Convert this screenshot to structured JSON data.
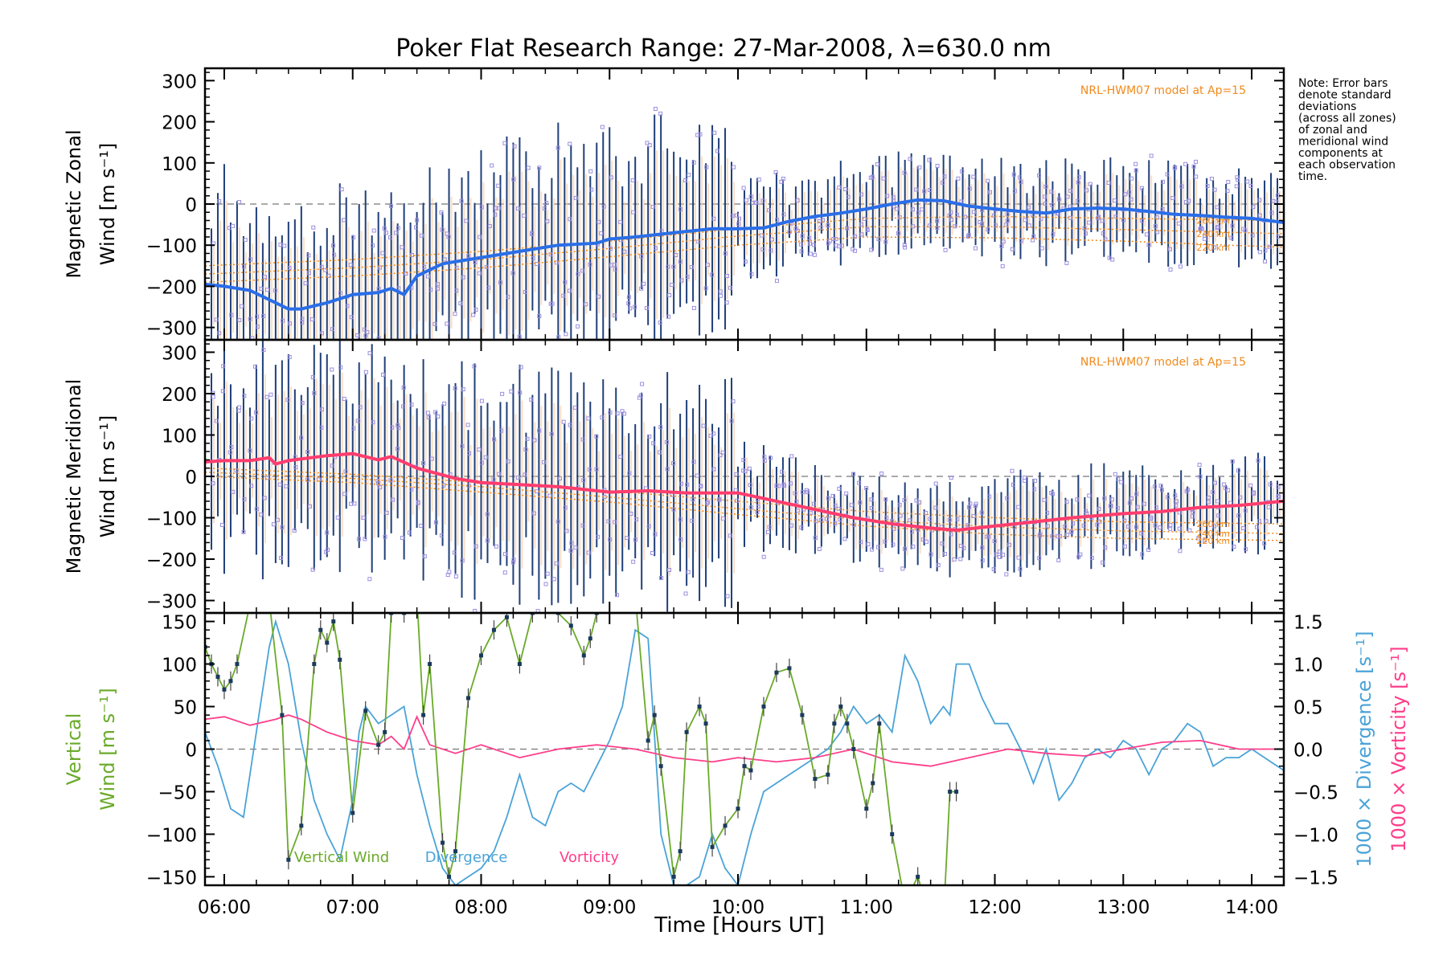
{
  "title": "Poker Flat Research Range: 27-Mar-2008, λ=630.0 nm",
  "note": "Note: Error bars denote standard deviations (across all zones) of zonal and meridional wind components at each observation time.",
  "note_lines": [
    "Note: Error bars",
    "denote standard",
    "deviations",
    "(across all zones)",
    "of zonal and",
    "meridional wind",
    "components at",
    "each observation",
    "time."
  ],
  "colors": {
    "zonal": "#2a6ee8",
    "meridional": "#ff3d6e",
    "vertical": "#6aaa2a",
    "divergence": "#4aa3d8",
    "vorticity": "#ff3d8a",
    "model": "#f08a1c",
    "zone_points": "#9a8fe0",
    "errorbar": "#1f3f78"
  },
  "xaxis": {
    "label": "Time [Hours UT]",
    "range": [
      5.85,
      14.25
    ],
    "ticks": [
      6,
      7,
      8,
      9,
      10,
      11,
      12,
      13,
      14
    ],
    "tick_labels": [
      "06:00",
      "07:00",
      "08:00",
      "09:00",
      "10:00",
      "11:00",
      "12:00",
      "13:00",
      "14:00"
    ]
  },
  "chart_data": [
    {
      "type": "line",
      "name": "zonal-panel",
      "ylabel_line1": "Magnetic Zonal",
      "ylabel_line2": "Wind [m s⁻¹]",
      "ylim": [
        -330,
        330
      ],
      "yticks": [
        -300,
        -200,
        -100,
        0,
        100,
        200,
        300
      ],
      "model_label": "NRL-HWM07 model at Ap=15",
      "model_alt_labels": [
        "260 km",
        "240 km",
        "220 km"
      ],
      "series": [
        {
          "name": "zonal-wind",
          "x": [
            5.85,
            6.0,
            6.2,
            6.4,
            6.5,
            6.6,
            6.8,
            7.0,
            7.2,
            7.3,
            7.4,
            7.5,
            7.7,
            8.0,
            8.3,
            8.6,
            8.9,
            9.0,
            9.2,
            9.5,
            9.8,
            10.0,
            10.2,
            10.4,
            10.6,
            10.8,
            11.0,
            11.2,
            11.4,
            11.6,
            11.8,
            12.0,
            12.2,
            12.4,
            12.6,
            12.8,
            13.0,
            13.2,
            13.4,
            13.6,
            13.8,
            14.0,
            14.25
          ],
          "y": [
            -195,
            -200,
            -210,
            -240,
            -255,
            -255,
            -240,
            -220,
            -215,
            -205,
            -220,
            -175,
            -145,
            -130,
            -115,
            -100,
            -95,
            -85,
            -80,
            -70,
            -60,
            -60,
            -58,
            -42,
            -30,
            -22,
            -12,
            0,
            10,
            8,
            -5,
            -12,
            -18,
            -22,
            -12,
            -10,
            -12,
            -18,
            -25,
            -28,
            -32,
            -35,
            -45
          ]
        },
        {
          "name": "model-260",
          "x": [
            5.85,
            7,
            8,
            9,
            10,
            11,
            12,
            13,
            14.25
          ],
          "y": [
            -150,
            -135,
            -115,
            -90,
            -60,
            -35,
            -30,
            -35,
            -40
          ]
        },
        {
          "name": "model-240",
          "x": [
            5.85,
            7,
            8,
            9,
            10,
            11,
            12,
            13,
            14.25
          ],
          "y": [
            -170,
            -155,
            -135,
            -108,
            -78,
            -55,
            -55,
            -62,
            -72
          ]
        },
        {
          "name": "model-220",
          "x": [
            5.85,
            7,
            8,
            9,
            10,
            11,
            12,
            13,
            14.25
          ],
          "y": [
            -190,
            -175,
            -155,
            -128,
            -100,
            -80,
            -82,
            -90,
            -105
          ]
        }
      ]
    },
    {
      "type": "line",
      "name": "meridional-panel",
      "ylabel_line1": "Magnetic Meridional",
      "ylabel_line2": "Wind [m s⁻¹]",
      "ylim": [
        -330,
        330
      ],
      "yticks": [
        -300,
        -200,
        -100,
        0,
        100,
        200,
        300
      ],
      "model_label": "NRL-HWM07 model at Ap=15",
      "model_alt_labels": [
        "260 km",
        "240 km",
        "220 km"
      ],
      "series": [
        {
          "name": "meridional-wind",
          "x": [
            5.85,
            6.0,
            6.2,
            6.35,
            6.4,
            6.5,
            6.8,
            7.0,
            7.2,
            7.3,
            7.5,
            7.8,
            8.0,
            8.3,
            8.6,
            9.0,
            9.3,
            9.6,
            10.0,
            10.3,
            10.6,
            10.9,
            11.2,
            11.5,
            11.7,
            12.0,
            12.3,
            12.6,
            13.0,
            13.3,
            13.6,
            13.9,
            14.25
          ],
          "y": [
            35,
            38,
            38,
            45,
            30,
            38,
            50,
            55,
            40,
            48,
            20,
            -5,
            -15,
            -20,
            -25,
            -38,
            -35,
            -40,
            -40,
            -60,
            -80,
            -100,
            -115,
            -125,
            -130,
            -120,
            -110,
            -100,
            -90,
            -85,
            -75,
            -70,
            -60
          ]
        },
        {
          "name": "model-260",
          "x": [
            5.85,
            7,
            8,
            9,
            10,
            11,
            12,
            13,
            14.25
          ],
          "y": [
            20,
            5,
            -15,
            -35,
            -60,
            -85,
            -100,
            -110,
            -115
          ]
        },
        {
          "name": "model-240",
          "x": [
            5.85,
            7,
            8,
            9,
            10,
            11,
            12,
            13,
            14.25
          ],
          "y": [
            10,
            -5,
            -25,
            -50,
            -78,
            -105,
            -122,
            -132,
            -138
          ]
        },
        {
          "name": "model-220",
          "x": [
            5.85,
            7,
            8,
            9,
            10,
            11,
            12,
            13,
            14.25
          ],
          "y": [
            0,
            -15,
            -38,
            -62,
            -92,
            -120,
            -140,
            -150,
            -155
          ]
        }
      ]
    },
    {
      "type": "line",
      "name": "vertical-panel",
      "ylabel_line1": "Vertical",
      "ylabel_line2": "Wind [m s⁻¹]",
      "ylim": [
        -160,
        160
      ],
      "yticks": [
        -150,
        -100,
        -50,
        0,
        50,
        100,
        150
      ],
      "y2label_a": "1000 × Divergence [s⁻¹]",
      "y2label_b": "1000 × Vorticity [s⁻¹]",
      "y2lim": [
        -1.6,
        1.6
      ],
      "y2ticks": [
        -1.5,
        -1.0,
        -0.5,
        0.0,
        0.5,
        1.0,
        1.5
      ],
      "y2tick_labels": [
        "−1.5",
        "−1.0",
        "−0.5",
        "0.0",
        "0.5",
        "1.0",
        "1.5"
      ],
      "legend": [
        "Vertical Wind",
        "Divergence",
        "Vorticity"
      ],
      "series": [
        {
          "name": "Vertical Wind",
          "x": [
            5.85,
            5.9,
            5.95,
            6.0,
            6.05,
            6.1,
            6.2,
            6.35,
            6.45,
            6.5,
            6.6,
            6.7,
            6.75,
            6.8,
            6.85,
            6.9,
            7.0,
            7.1,
            7.2,
            7.25,
            7.3,
            7.4,
            7.5,
            7.55,
            7.6,
            7.7,
            7.75,
            7.8,
            7.9,
            8.0,
            8.1,
            8.2,
            8.3,
            8.4,
            8.5,
            8.6,
            8.7,
            8.8,
            8.85,
            8.9,
            9.0,
            9.1,
            9.2,
            9.3,
            9.35,
            9.4,
            9.5,
            9.55,
            9.6,
            9.7,
            9.75,
            9.8,
            9.9,
            10.0,
            10.05,
            10.1,
            10.2,
            10.3,
            10.4,
            10.5,
            10.6,
            10.7,
            10.75,
            10.8,
            10.85,
            10.9,
            11.0,
            11.05,
            11.1,
            11.2,
            11.3,
            11.4,
            11.5,
            11.6,
            11.65,
            11.7
          ],
          "y": [
            120,
            100,
            85,
            70,
            80,
            100,
            170,
            175,
            40,
            -130,
            -90,
            100,
            140,
            125,
            150,
            105,
            -75,
            45,
            5,
            20,
            160,
            160,
            180,
            40,
            100,
            -110,
            -150,
            -120,
            60,
            110,
            140,
            155,
            100,
            160,
            165,
            160,
            145,
            110,
            130,
            160,
            165,
            165,
            180,
            10,
            40,
            -20,
            -150,
            -120,
            20,
            50,
            30,
            -115,
            -90,
            -70,
            -20,
            -25,
            50,
            90,
            95,
            40,
            -35,
            -30,
            30,
            50,
            30,
            0,
            -70,
            -40,
            30,
            -100,
            -180,
            -150,
            -200,
            -200,
            -50,
            -50
          ]
        },
        {
          "name": "Divergence",
          "x": [
            5.85,
            5.95,
            6.05,
            6.15,
            6.25,
            6.35,
            6.4,
            6.5,
            6.6,
            6.7,
            6.8,
            6.9,
            7.0,
            7.05,
            7.1,
            7.2,
            7.3,
            7.4,
            7.5,
            7.6,
            7.7,
            7.8,
            7.9,
            8.0,
            8.1,
            8.2,
            8.3,
            8.4,
            8.5,
            8.6,
            8.7,
            8.8,
            8.9,
            9.0,
            9.1,
            9.2,
            9.3,
            9.4,
            9.5,
            9.6,
            9.7,
            9.8,
            9.9,
            10.0,
            10.1,
            10.2,
            10.3,
            10.4,
            10.5,
            10.6,
            10.7,
            10.8,
            10.9,
            11.0,
            11.1,
            11.2,
            11.3,
            11.4,
            11.5,
            11.6,
            11.65,
            11.7,
            11.8,
            11.9,
            12.0,
            12.1,
            12.2,
            12.3,
            12.4,
            12.5,
            12.6,
            12.7,
            12.8,
            12.9,
            13.0,
            13.1,
            13.2,
            13.3,
            13.4,
            13.5,
            13.6,
            13.7,
            13.8,
            13.9,
            14.0,
            14.1,
            14.2,
            14.25
          ],
          "y": [
            0.2,
            -0.2,
            -0.7,
            -0.8,
            0.2,
            1.2,
            1.5,
            1.0,
            0.1,
            -0.6,
            -1.0,
            -1.3,
            -0.6,
            0.2,
            0.5,
            0.3,
            0.4,
            0.5,
            -0.3,
            -0.9,
            -1.4,
            -1.6,
            -1.5,
            -1.4,
            -1.2,
            -0.8,
            -0.3,
            -0.8,
            -0.9,
            -0.5,
            -0.4,
            -0.5,
            -0.2,
            0.1,
            0.5,
            1.4,
            1.3,
            -1.0,
            -1.6,
            -1.7,
            -1.5,
            -1.0,
            -1.4,
            -1.6,
            -1.0,
            -0.5,
            -0.4,
            -0.3,
            -0.2,
            -0.1,
            0.0,
            0.2,
            0.5,
            0.3,
            0.4,
            0.2,
            1.1,
            0.8,
            0.3,
            0.5,
            0.4,
            1.0,
            1.0,
            0.6,
            0.3,
            0.3,
            0.0,
            -0.4,
            0.0,
            -0.6,
            -0.4,
            -0.1,
            0.0,
            -0.1,
            0.1,
            0.0,
            -0.3,
            0.0,
            0.1,
            0.3,
            0.2,
            -0.2,
            -0.1,
            -0.1,
            0.0,
            -0.1,
            -0.2,
            -0.25
          ]
        },
        {
          "name": "Vorticity",
          "x": [
            5.85,
            6.0,
            6.2,
            6.4,
            6.5,
            6.6,
            6.8,
            7.0,
            7.2,
            7.3,
            7.4,
            7.5,
            7.6,
            7.8,
            8.0,
            8.3,
            8.6,
            8.9,
            9.2,
            9.5,
            9.8,
            10.0,
            10.3,
            10.6,
            10.9,
            11.2,
            11.5,
            11.8,
            12.1,
            12.4,
            12.7,
            13.0,
            13.3,
            13.6,
            13.9,
            14.25
          ],
          "y": [
            0.35,
            0.38,
            0.28,
            0.35,
            0.4,
            0.35,
            0.2,
            0.1,
            0.05,
            0.15,
            0.0,
            0.38,
            0.05,
            -0.05,
            0.05,
            -0.1,
            0.0,
            0.05,
            0.0,
            -0.1,
            -0.15,
            -0.1,
            -0.15,
            -0.1,
            0.0,
            -0.15,
            -0.2,
            -0.1,
            0.0,
            -0.05,
            -0.08,
            0.0,
            0.08,
            0.1,
            0.0,
            0.0
          ]
        }
      ]
    }
  ]
}
